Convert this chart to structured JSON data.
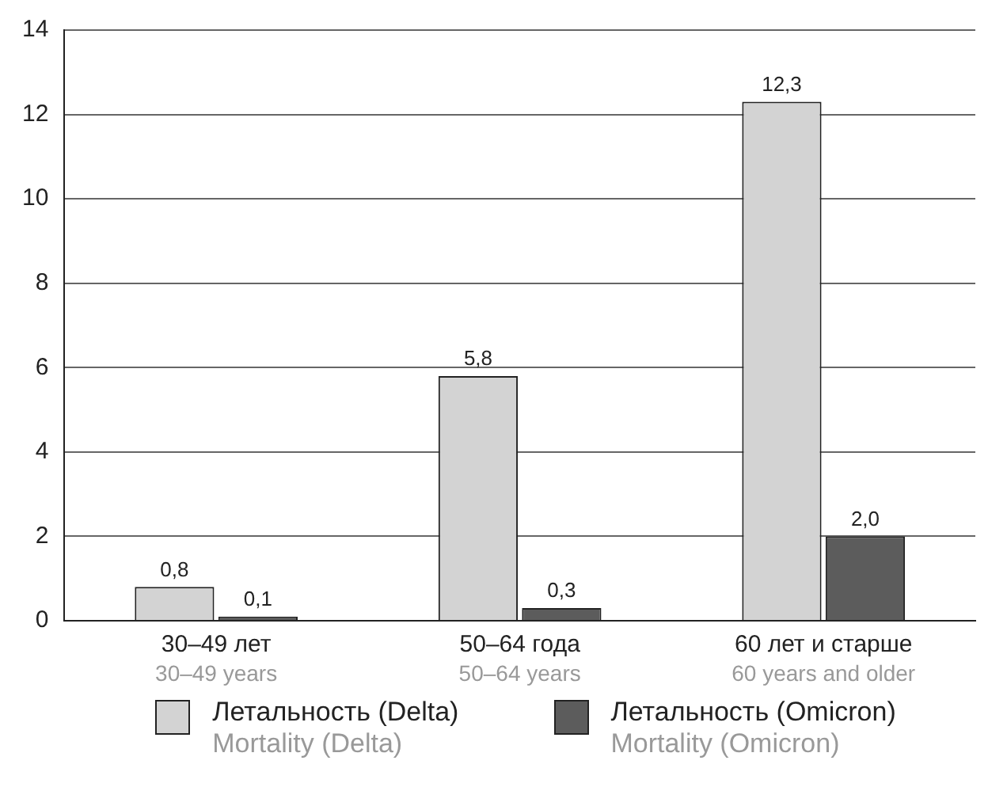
{
  "chart_data": {
    "type": "bar",
    "categories": [
      "30–49 лет\n30–49 years",
      "50–64 года\n50–64 years",
      "60 лет и старше\n60 years and older"
    ],
    "series": [
      {
        "name": "Летальность (Delta)\nMortality (Delta)",
        "color": "#d3d3d3",
        "values": [
          0.8,
          5.8,
          12.3
        ],
        "value_labels": [
          "0,8",
          "5,8",
          "12,3"
        ]
      },
      {
        "name": "Летальность (Omicron)\nMortality (Omicron)",
        "color": "#5c5c5c",
        "values": [
          0.1,
          0.3,
          2.0
        ],
        "value_labels": [
          "0,1",
          "0,3",
          "2,0"
        ]
      }
    ],
    "ylim": [
      0,
      14
    ],
    "yticks": [
      0,
      2,
      4,
      6,
      8,
      10,
      12,
      14
    ],
    "grid": "y",
    "legend": "bottom"
  }
}
